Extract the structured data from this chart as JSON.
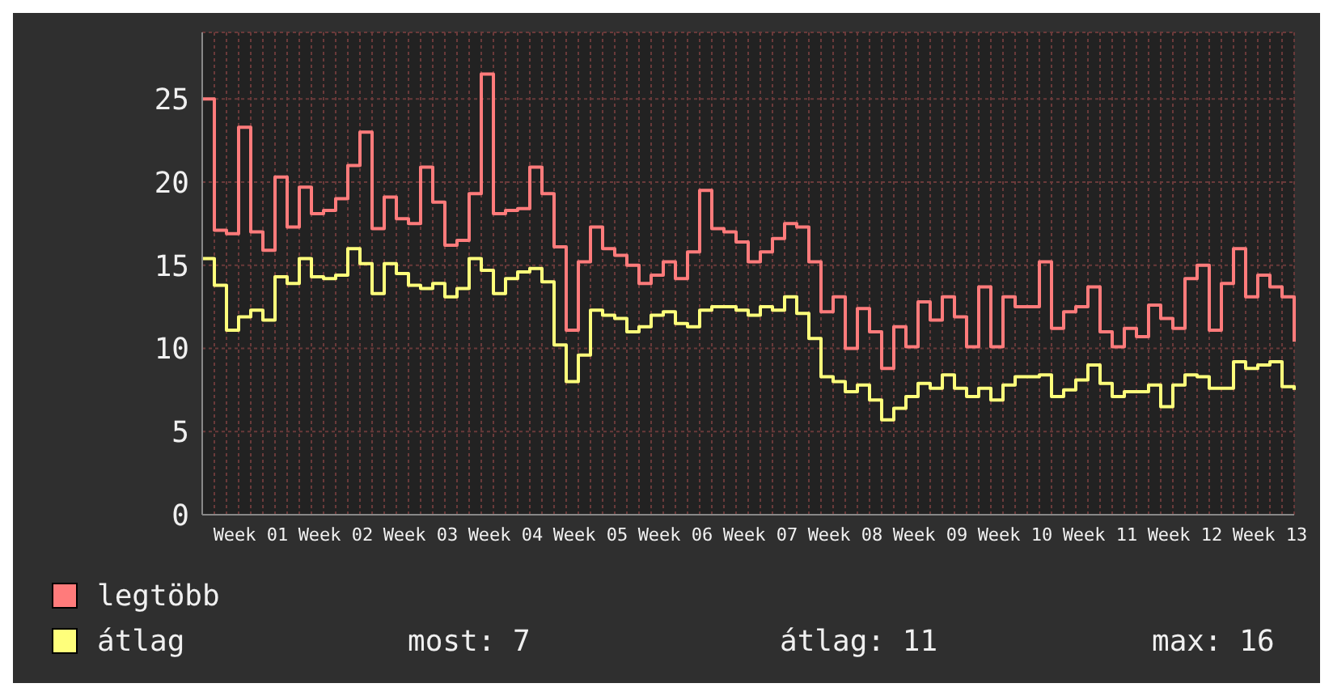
{
  "chart_data": {
    "type": "step",
    "categories": [
      null,
      null,
      null,
      null,
      "Week 01",
      null,
      null,
      null,
      null,
      null,
      null,
      "Week 02",
      null,
      null,
      null,
      null,
      null,
      null,
      "Week 03",
      null,
      null,
      null,
      null,
      null,
      null,
      "Week 04",
      null,
      null,
      null,
      null,
      null,
      null,
      "Week 05",
      null,
      null,
      null,
      null,
      null,
      null,
      "Week 06",
      null,
      null,
      null,
      null,
      null,
      null,
      "Week 07",
      null,
      null,
      null,
      null,
      null,
      null,
      "Week 08",
      null,
      null,
      null,
      null,
      null,
      null,
      "Week 09",
      null,
      null,
      null,
      null,
      null,
      null,
      "Week 10",
      null,
      null,
      null,
      null,
      null,
      null,
      "Week 11",
      null,
      null,
      null,
      null,
      null,
      null,
      "Week 12",
      null,
      null,
      null,
      null,
      null,
      null,
      "Week 13",
      null,
      null
    ],
    "series": [
      {
        "name": "legtöbb",
        "color": "#ff7b7b",
        "values": [
          25.0,
          17.1,
          16.9,
          23.3,
          17.0,
          15.9,
          20.3,
          17.3,
          19.7,
          18.1,
          18.3,
          19.0,
          21.0,
          23.0,
          17.2,
          19.1,
          17.8,
          17.5,
          20.9,
          18.8,
          16.2,
          16.5,
          19.3,
          26.5,
          18.1,
          18.3,
          18.4,
          20.9,
          19.3,
          16.1,
          11.1,
          15.2,
          17.3,
          16.0,
          15.6,
          15.0,
          13.9,
          14.4,
          15.2,
          14.2,
          15.8,
          19.5,
          17.2,
          17.0,
          16.4,
          15.2,
          15.8,
          16.6,
          17.5,
          17.3,
          15.2,
          12.2,
          13.1,
          10.0,
          12.4,
          11.0,
          8.8,
          11.3,
          10.1,
          12.8,
          11.7,
          13.1,
          11.9,
          10.1,
          13.7,
          10.1,
          13.1,
          12.5,
          12.5,
          15.2,
          11.2,
          12.2,
          12.5,
          13.7,
          11.0,
          10.1,
          11.2,
          10.7,
          12.6,
          11.8,
          11.2,
          14.2,
          15.0,
          11.1,
          13.9,
          16.0,
          13.1,
          14.4,
          13.7,
          13.1,
          10.4
        ]
      },
      {
        "name": "átlag",
        "color": "#ffff7b",
        "values": [
          15.4,
          13.8,
          11.1,
          11.9,
          12.3,
          11.7,
          14.3,
          13.9,
          15.4,
          14.3,
          14.2,
          14.4,
          16.0,
          15.1,
          13.3,
          15.1,
          14.5,
          13.8,
          13.6,
          13.9,
          13.1,
          13.6,
          15.4,
          14.7,
          13.3,
          14.2,
          14.6,
          14.8,
          14.0,
          10.2,
          8.0,
          9.6,
          12.3,
          12.0,
          11.8,
          11.0,
          11.3,
          12.0,
          12.2,
          11.5,
          11.3,
          12.3,
          12.5,
          12.5,
          12.3,
          12.0,
          12.5,
          12.3,
          13.1,
          12.1,
          10.6,
          8.3,
          8.0,
          7.4,
          7.8,
          6.9,
          5.7,
          6.4,
          7.1,
          7.9,
          7.6,
          8.4,
          7.6,
          7.1,
          7.6,
          6.9,
          7.8,
          8.3,
          8.3,
          8.4,
          7.1,
          7.5,
          8.1,
          9.0,
          7.9,
          7.1,
          7.4,
          7.4,
          7.8,
          6.5,
          7.8,
          8.4,
          8.3,
          7.6,
          7.6,
          9.2,
          8.8,
          9.0,
          9.2,
          7.7,
          7.5
        ]
      }
    ],
    "ylim": [
      0,
      29
    ],
    "yticks": [
      0,
      5,
      10,
      15,
      20,
      25
    ],
    "grid": true,
    "legend": "bottom left",
    "annotations": [
      "most: 7",
      "átlag: 11",
      "max: 16"
    ]
  }
}
